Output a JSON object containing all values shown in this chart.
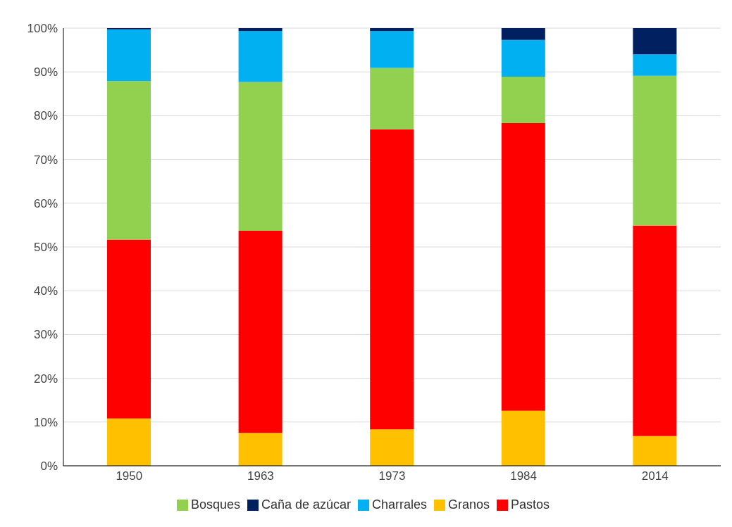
{
  "chart_data": {
    "type": "bar",
    "stacked": true,
    "categories": [
      "1950",
      "1963",
      "1973",
      "1984",
      "2014"
    ],
    "series": [
      {
        "name": "Granos",
        "color": "#ffc000",
        "values": [
          10.8,
          7.5,
          8.3,
          12.6,
          6.8
        ]
      },
      {
        "name": "Pastos",
        "color": "#ff0000",
        "values": [
          40.9,
          46.2,
          68.6,
          65.7,
          48.1
        ]
      },
      {
        "name": "Bosques",
        "color": "#92d050",
        "values": [
          36.2,
          34.0,
          14.0,
          10.6,
          34.2
        ]
      },
      {
        "name": "Charrales",
        "color": "#00b0f0",
        "values": [
          11.8,
          11.6,
          8.4,
          8.4,
          4.9
        ]
      },
      {
        "name": "Caña de azúcar",
        "color": "#002060",
        "values": [
          0.3,
          0.7,
          0.7,
          2.7,
          6.0
        ]
      }
    ],
    "ylim": [
      0,
      100
    ],
    "yticks": [
      {
        "value": 0,
        "label": "0%"
      },
      {
        "value": 10,
        "label": "10%"
      },
      {
        "value": 20,
        "label": "20%"
      },
      {
        "value": 30,
        "label": "30%"
      },
      {
        "value": 40,
        "label": "40%"
      },
      {
        "value": 50,
        "label": "50%"
      },
      {
        "value": 60,
        "label": "60%"
      },
      {
        "value": 70,
        "label": "70%"
      },
      {
        "value": 80,
        "label": "80%"
      },
      {
        "value": 90,
        "label": "90%"
      },
      {
        "value": 100,
        "label": "100%"
      }
    ],
    "grid": "y",
    "legend": "bottom"
  }
}
